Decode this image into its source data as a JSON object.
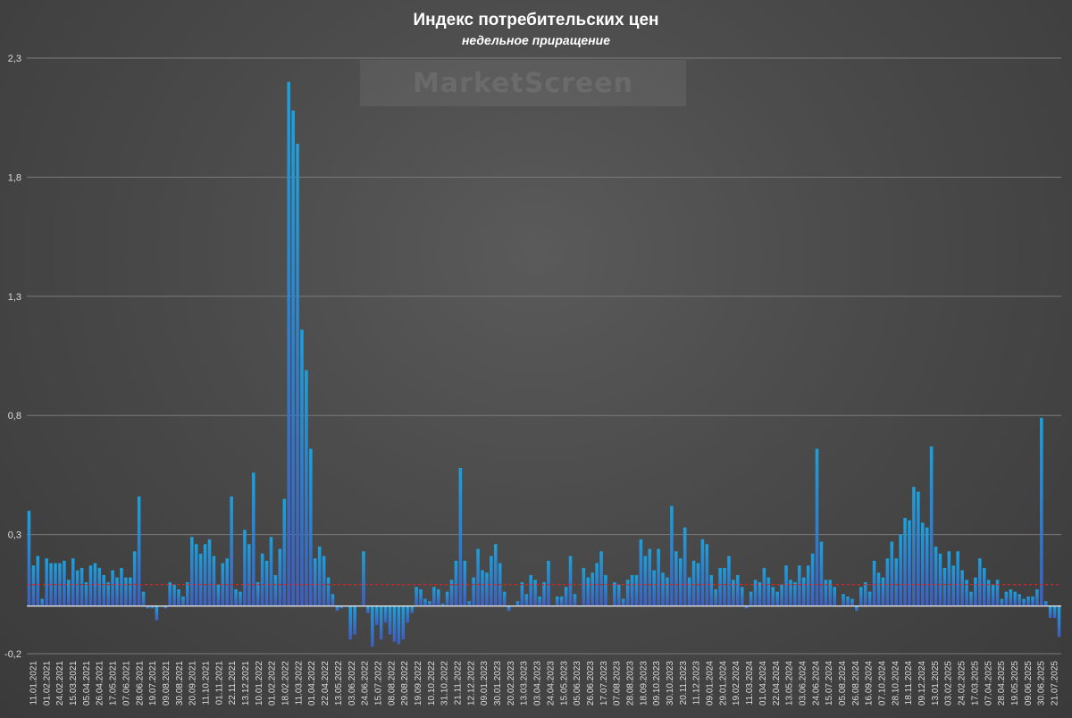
{
  "header": {
    "title": "Индекс потребительских цен",
    "subtitle": "недельное приращение",
    "watermark": "MarketScreen"
  },
  "colors": {
    "bar_top": "#1da0dc",
    "bar_bottom": "#3e5fbe",
    "average_line": "#d02828",
    "grid": "#7a7a7a",
    "zero_line": "#f0f0f0"
  },
  "chart_data": {
    "type": "bar",
    "title": "Индекс потребительских цен",
    "subtitle": "недельное приращение",
    "xlabel": "",
    "ylabel": "",
    "ylim": [
      -0.2,
      2.3
    ],
    "yticks": [
      -0.2,
      0.3,
      0.8,
      1.3,
      1.8,
      2.3
    ],
    "ytick_labels": [
      "-0,2",
      "0,3",
      "0,8",
      "1,3",
      "1,8",
      "2,3"
    ],
    "grid": true,
    "average_line": 0.09,
    "xtick_labels": [
      "11.01.2021",
      "01.02.2021",
      "24.02.2021",
      "15.03.2021",
      "05.04.2021",
      "26.04.2021",
      "17.05.2021",
      "07.06.2021",
      "28.06.2021",
      "19.07.2021",
      "09.08.2021",
      "30.08.2021",
      "20.09.2021",
      "11.10.2021",
      "01.11.2021",
      "22.11.2021",
      "13.12.2021",
      "10.01.2022",
      "01.02.2022",
      "18.02.2022",
      "11.03.2022",
      "01.04.2022",
      "22.04.2022",
      "13.05.2022",
      "03.06.2022",
      "24.06.2022",
      "15.07.2022",
      "08.08.2022",
      "29.08.2022",
      "19.09.2022",
      "10.10.2022",
      "31.10.2022",
      "21.11.2022",
      "12.12.2022",
      "09.01.2023",
      "30.01.2023",
      "20.02.2023",
      "13.03.2023",
      "03.04.2023",
      "24.04.2023",
      "15.05.2023",
      "05.06.2023",
      "26.06.2023",
      "17.07.2023",
      "07.08.2023",
      "28.08.2023",
      "18.09.2023",
      "09.10.2023",
      "30.10.2023",
      "20.11.2023",
      "11.12.2023",
      "09.01.2024",
      "29.01.2024",
      "19.02.2024",
      "11.03.2024",
      "01.04.2024",
      "22.04.2024",
      "13.05.2024",
      "03.06.2024",
      "24.06.2024",
      "15.07.2024",
      "05.08.2024",
      "26.08.2024",
      "16.09.2024",
      "07.10.2024",
      "28.10.2024",
      "18.11.2024",
      "09.12.2024",
      "13.01.2025",
      "03.02.2025",
      "24.02.2025",
      "17.03.2025",
      "07.04.2025",
      "28.04.2025",
      "19.05.2025",
      "09.06.2025",
      "30.06.2025",
      "21.07.2025"
    ],
    "values": [
      0.4,
      0.17,
      0.21,
      0.03,
      0.2,
      0.18,
      0.18,
      0.18,
      0.19,
      0.11,
      0.2,
      0.15,
      0.16,
      0.1,
      0.17,
      0.18,
      0.16,
      0.13,
      0.1,
      0.15,
      0.12,
      0.16,
      0.12,
      0.12,
      0.23,
      0.46,
      0.06,
      -0.01,
      -0.01,
      -0.06,
      0.0,
      -0.01,
      0.1,
      0.09,
      0.07,
      0.04,
      0.1,
      0.29,
      0.26,
      0.22,
      0.26,
      0.28,
      0.21,
      0.09,
      0.18,
      0.2,
      0.46,
      0.07,
      0.06,
      0.32,
      0.26,
      0.56,
      0.1,
      0.22,
      0.19,
      0.29,
      0.13,
      0.24,
      0.45,
      2.2,
      2.08,
      1.94,
      1.16,
      0.99,
      0.66,
      0.2,
      0.25,
      0.21,
      0.12,
      0.05,
      -0.02,
      -0.01,
      0.0,
      -0.14,
      -0.12,
      0.0,
      0.23,
      -0.03,
      -0.17,
      -0.08,
      -0.14,
      -0.07,
      -0.12,
      -0.15,
      -0.16,
      -0.14,
      -0.07,
      -0.03,
      0.08,
      0.07,
      0.03,
      0.02,
      0.08,
      0.07,
      0.01,
      0.06,
      0.11,
      0.19,
      0.58,
      0.19,
      0.02,
      0.12,
      0.24,
      0.15,
      0.14,
      0.21,
      0.26,
      0.18,
      0.06,
      -0.02,
      0.0,
      0.02,
      0.1,
      0.05,
      0.13,
      0.11,
      0.04,
      0.1,
      0.19,
      0.0,
      0.04,
      0.04,
      0.08,
      0.21,
      0.05,
      0.0,
      0.16,
      0.12,
      0.14,
      0.18,
      0.23,
      0.13,
      0.0,
      0.1,
      0.09,
      0.03,
      0.11,
      0.13,
      0.13,
      0.28,
      0.21,
      0.24,
      0.15,
      0.24,
      0.14,
      0.12,
      0.42,
      0.23,
      0.2,
      0.33,
      0.12,
      0.19,
      0.18,
      0.28,
      0.26,
      0.13,
      0.07,
      0.16,
      0.16,
      0.21,
      0.11,
      0.13,
      0.08,
      -0.01,
      0.06,
      0.11,
      0.1,
      0.16,
      0.12,
      0.08,
      0.06,
      0.09,
      0.17,
      0.11,
      0.1,
      0.17,
      0.12,
      0.17,
      0.22,
      0.66,
      0.27,
      0.11,
      0.11,
      0.08,
      0.0,
      0.05,
      0.04,
      0.03,
      -0.02,
      0.08,
      0.1,
      0.06,
      0.19,
      0.14,
      0.12,
      0.2,
      0.27,
      0.2,
      0.3,
      0.37,
      0.36,
      0.5,
      0.48,
      0.35,
      0.33,
      0.67,
      0.25,
      0.22,
      0.16,
      0.23,
      0.17,
      0.23,
      0.15,
      0.11,
      0.06,
      0.12,
      0.2,
      0.16,
      0.11,
      0.09,
      0.11,
      0.03,
      0.06,
      0.07,
      0.06,
      0.05,
      0.03,
      0.04,
      0.04,
      0.07,
      0.79,
      0.02,
      -0.05,
      -0.05,
      -0.13
    ]
  }
}
